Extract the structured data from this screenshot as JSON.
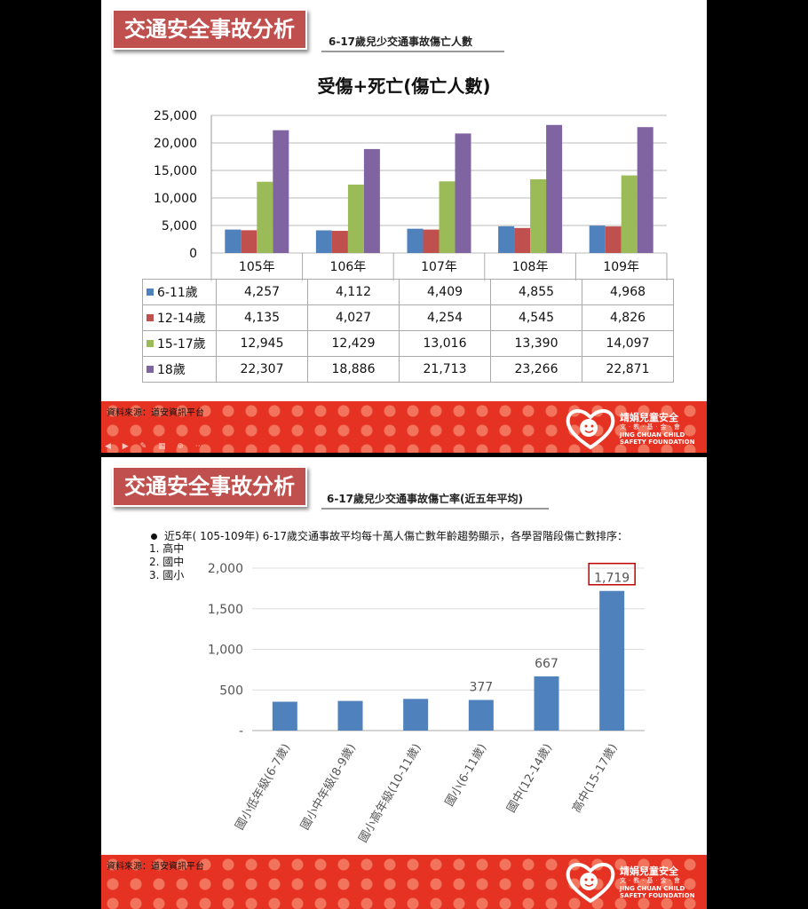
{
  "slide1": {
    "title": "交通安全事故分析",
    "subtitle": "6-17歲兒少交通事故傷亡人數",
    "source": "資料來源：道安資訊平台",
    "logo": {
      "name_zh": "靖娟兒童安全",
      "sub_zh": "文·教·基·金·會",
      "name_en": "JING CHUAN CHILD",
      "name_en2": "SAFETY FOUNDATION"
    }
  },
  "slide2": {
    "title": "交通安全事故分析",
    "subtitle": "6-17歲兒少交通事故傷亡率(近五年平均)",
    "bullet": "近5年( 105-109年) 6-17歲交通事故平均每十萬人傷亡數年齡趨勢顯示，各學習階段傷亡數排序：",
    "ranking": [
      "1.  高中",
      "2.  國中",
      "3.  國小"
    ],
    "source": "資料來源：道安資訊平台",
    "logo": {
      "name_zh": "靖娟兒童安全",
      "sub_zh": "文·教·基·金·會",
      "name_en": "JING CHUAN CHILD",
      "name_en2": "SAFETY FOUNDATION"
    }
  },
  "chart_data": [
    {
      "type": "bar",
      "title": "受傷+死亡(傷亡人數)",
      "categories": [
        "105年",
        "106年",
        "107年",
        "108年",
        "109年"
      ],
      "series": [
        {
          "name": "6-11歲",
          "color": "#4f81bd",
          "values": [
            4257,
            4112,
            4409,
            4855,
            4968
          ],
          "labels": [
            "4,257",
            "4,112",
            "4,409",
            "4,855",
            "4,968"
          ]
        },
        {
          "name": "12-14歲",
          "color": "#c0504d",
          "values": [
            4135,
            4027,
            4254,
            4545,
            4826
          ],
          "labels": [
            "4,135",
            "4,027",
            "4,254",
            "4,545",
            "4,826"
          ]
        },
        {
          "name": "15-17歲",
          "color": "#9bbb59",
          "values": [
            12945,
            12429,
            13016,
            13390,
            14097
          ],
          "labels": [
            "12,945",
            "12,429",
            "13,016",
            "13,390",
            "14,097"
          ]
        },
        {
          "name": "18歲",
          "color": "#8064a2",
          "values": [
            22307,
            18886,
            21713,
            23266,
            22871
          ],
          "labels": [
            "22,307",
            "18,886",
            "21,713",
            "23,266",
            "22,871"
          ]
        }
      ],
      "ylim": [
        0,
        25000
      ],
      "yticks": [
        0,
        5000,
        10000,
        15000,
        20000,
        25000
      ],
      "ytick_labels": [
        "0",
        "5,000",
        "10,000",
        "15,000",
        "20,000",
        "25,000"
      ],
      "grid": true,
      "legend": "data-table"
    },
    {
      "type": "bar",
      "categories": [
        "國小低年級(6-7歲)",
        "國小中年級(8-9歲)",
        "國小高年級(10-11歲)",
        "國小(6-11歲)",
        "國中(12-14歲)",
        "高中(15-17歲)"
      ],
      "values": [
        355,
        365,
        390,
        377,
        667,
        1719
      ],
      "data_labels": [
        "",
        "",
        "",
        "377",
        "667",
        "1,719"
      ],
      "highlight_label_index": 5,
      "color": "#4f81bd",
      "ylim": [
        0,
        2000
      ],
      "yticks": [
        0,
        500,
        1000,
        1500,
        2000
      ],
      "ytick_labels": [
        "-",
        "500",
        "1,000",
        "1,500",
        "2,000"
      ],
      "grid": true
    }
  ]
}
